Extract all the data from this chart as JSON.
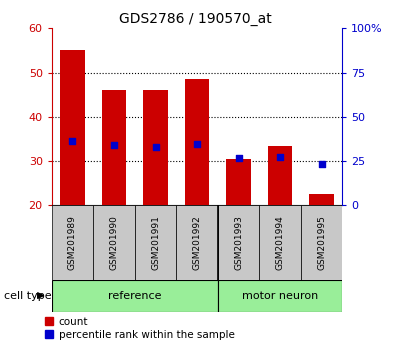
{
  "title": "GDS2786 / 190570_at",
  "samples": [
    "GSM201989",
    "GSM201990",
    "GSM201991",
    "GSM201992",
    "GSM201993",
    "GSM201994",
    "GSM201995"
  ],
  "count_values": [
    55.0,
    46.0,
    46.0,
    48.5,
    30.5,
    33.5,
    22.5
  ],
  "percentile_values": [
    36.5,
    34.0,
    33.0,
    34.5,
    27.0,
    27.5,
    23.5
  ],
  "bar_bottom": 20,
  "ylim_left": [
    20,
    60
  ],
  "ylim_right": [
    0,
    100
  ],
  "yticks_left": [
    20,
    30,
    40,
    50,
    60
  ],
  "yticks_right": [
    0,
    25,
    50,
    75,
    100
  ],
  "ytick_labels_right": [
    "0",
    "25",
    "50",
    "75",
    "100%"
  ],
  "left_axis_color": "#cc0000",
  "right_axis_color": "#0000cc",
  "bar_color": "#cc0000",
  "percentile_color": "#0000cc",
  "group1_indices": [
    0,
    1,
    2,
    3
  ],
  "group2_indices": [
    4,
    5,
    6
  ],
  "group1_label": "reference",
  "group2_label": "motor neuron",
  "group_bg_color": "#99ee99",
  "tick_bg_color": "#c8c8c8",
  "legend_count_label": "count",
  "legend_pct_label": "percentile rank within the sample",
  "cell_type_label": "cell type",
  "bar_width": 0.6,
  "fig_width": 3.98,
  "fig_height": 3.54
}
